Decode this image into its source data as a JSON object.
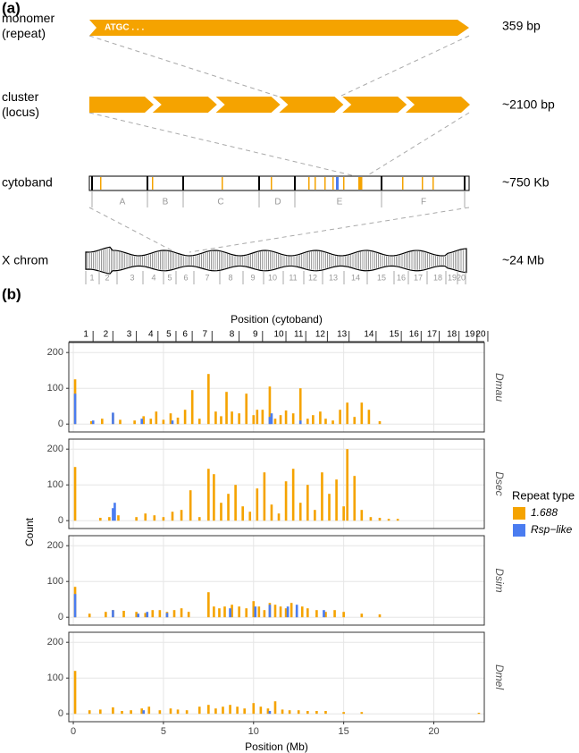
{
  "panel_a": {
    "label": "(a)",
    "rows": [
      {
        "name": [
          "monomer",
          "(repeat)"
        ],
        "size": "359 bp"
      },
      {
        "name": [
          "cluster",
          "(locus)"
        ],
        "size": "~2100 bp"
      },
      {
        "name": [
          "cytoband"
        ],
        "size": "~750 Kb"
      },
      {
        "name": [
          "X chrom"
        ],
        "size": "~24 Mb"
      }
    ],
    "monomer_text": "ATGC . . .",
    "band_letters": [
      "A",
      "B",
      "C",
      "D",
      "E",
      "F"
    ],
    "chrom_bands": [
      1,
      2,
      3,
      4,
      5,
      6,
      7,
      8,
      9,
      10,
      11,
      12,
      13,
      14,
      15,
      16,
      17,
      18,
      19,
      20
    ]
  },
  "chart_data": {
    "type": "bar",
    "label": "(b)",
    "xlabel": "Position (Mb)",
    "ylabel": "Count",
    "top_xlabel": "Position (cytoband)",
    "legend_title": "Repeat type",
    "grid": true,
    "xlim": [
      -0.25,
      22.8
    ],
    "xticks": [
      0,
      5,
      10,
      15,
      20
    ],
    "ylim": [
      -22,
      228
    ],
    "yticks": [
      0,
      100,
      200
    ],
    "top_xticks": [
      {
        "value": 0.7,
        "label": "1"
      },
      {
        "value": 1.8,
        "label": "2"
      },
      {
        "value": 3.1,
        "label": "3"
      },
      {
        "value": 4.3,
        "label": "4"
      },
      {
        "value": 5.3,
        "label": "5"
      },
      {
        "value": 6.2,
        "label": "6"
      },
      {
        "value": 7.3,
        "label": "7"
      },
      {
        "value": 8.8,
        "label": "8"
      },
      {
        "value": 10.1,
        "label": "9"
      },
      {
        "value": 11.4,
        "label": "10"
      },
      {
        "value": 12.5,
        "label": "11"
      },
      {
        "value": 13.7,
        "label": "12"
      },
      {
        "value": 14.9,
        "label": "13"
      },
      {
        "value": 16.4,
        "label": "14"
      },
      {
        "value": 17.8,
        "label": "15"
      },
      {
        "value": 18.9,
        "label": "16"
      },
      {
        "value": 19.9,
        "label": "17"
      },
      {
        "value": 21.0,
        "label": "18"
      },
      {
        "value": 22.0,
        "label": "19"
      },
      {
        "value": 22.6,
        "label": "20"
      }
    ],
    "series": [
      {
        "name": "1.688",
        "color": "#f5a300"
      },
      {
        "name": "Rsp−like",
        "color": "#4a7cf0"
      }
    ],
    "facets": [
      {
        "label": "Dmau",
        "series": [
          {
            "x": [
              0.1,
              1.0,
              1.6,
              2.2,
              2.6,
              3.4,
              3.9,
              4.3,
              4.6,
              5.0,
              5.4,
              5.8,
              6.2,
              6.6,
              7.0,
              7.5,
              7.9,
              8.2,
              8.5,
              8.8,
              9.2,
              9.6,
              10.0,
              10.2,
              10.5,
              10.9,
              11.2,
              11.5,
              11.8,
              12.2,
              12.6,
              13.0,
              13.3,
              13.7,
              14.0,
              14.4,
              14.8,
              15.2,
              15.6,
              16.0,
              16.4,
              17.0
            ],
            "values": [
              125,
              8,
              15,
              30,
              12,
              10,
              22,
              15,
              35,
              12,
              30,
              18,
              40,
              95,
              15,
              140,
              35,
              22,
              90,
              35,
              30,
              85,
              25,
              40,
              40,
              105,
              15,
              25,
              38,
              30,
              100,
              15,
              25,
              35,
              15,
              10,
              40,
              60,
              20,
              60,
              40,
              8
            ]
          },
          {
            "x": [
              0.1,
              1.1,
              2.2,
              3.8,
              5.5,
              10.9,
              11.0,
              12.6
            ],
            "values": [
              85,
              10,
              32,
              15,
              10,
              20,
              30,
              10
            ]
          }
        ]
      },
      {
        "label": "Dsec",
        "series": [
          {
            "x": [
              0.1,
              1.5,
              2.0,
              2.5,
              3.5,
              4.0,
              4.5,
              5.0,
              5.5,
              6.0,
              6.5,
              7.0,
              7.5,
              7.8,
              8.2,
              8.6,
              9.0,
              9.4,
              9.8,
              10.2,
              10.6,
              11.0,
              11.4,
              11.8,
              12.2,
              12.6,
              13.0,
              13.4,
              13.8,
              14.2,
              14.6,
              15.0,
              15.2,
              15.6,
              16.0,
              16.5,
              17.0,
              17.5,
              18.0
            ],
            "values": [
              150,
              8,
              10,
              15,
              10,
              20,
              15,
              10,
              25,
              30,
              85,
              10,
              145,
              130,
              50,
              75,
              100,
              40,
              25,
              90,
              135,
              45,
              20,
              110,
              145,
              50,
              100,
              30,
              135,
              75,
              115,
              40,
              200,
              125,
              30,
              10,
              8,
              5,
              5
            ]
          },
          {
            "x": [
              2.2,
              2.3
            ],
            "values": [
              35,
              50
            ]
          }
        ]
      },
      {
        "label": "Dsim",
        "series": [
          {
            "x": [
              0.1,
              0.9,
              1.8,
              2.2,
              2.8,
              3.5,
              4.0,
              4.4,
              4.8,
              5.2,
              5.6,
              6.0,
              6.4,
              7.5,
              7.8,
              8.1,
              8.4,
              8.8,
              9.2,
              9.6,
              10.0,
              10.3,
              10.6,
              10.9,
              11.2,
              11.5,
              11.8,
              12.1,
              12.4,
              12.7,
              13.0,
              13.5,
              14.0,
              14.5,
              15.0,
              16.0,
              17.0
            ],
            "values": [
              85,
              10,
              15,
              20,
              18,
              15,
              12,
              20,
              20,
              15,
              20,
              25,
              15,
              70,
              30,
              25,
              30,
              35,
              30,
              25,
              45,
              30,
              20,
              40,
              35,
              30,
              25,
              40,
              20,
              30,
              25,
              20,
              15,
              20,
              15,
              10,
              8
            ]
          },
          {
            "x": [
              0.1,
              2.2,
              3.6,
              4.1,
              5.2,
              8.7,
              10.1,
              10.9,
              11.9,
              12.4,
              13.9
            ],
            "values": [
              65,
              20,
              10,
              15,
              12,
              25,
              30,
              35,
              30,
              35,
              20
            ]
          }
        ]
      },
      {
        "label": "Dmel",
        "series": [
          {
            "x": [
              0.1,
              0.9,
              1.5,
              2.2,
              2.7,
              3.2,
              3.8,
              4.2,
              4.8,
              5.4,
              5.8,
              6.3,
              7.0,
              7.5,
              7.9,
              8.3,
              8.7,
              9.1,
              9.5,
              10.0,
              10.4,
              10.8,
              11.2,
              11.6,
              12.0,
              12.5,
              13.0,
              13.5,
              14.0,
              15.0,
              16.0,
              22.5
            ],
            "values": [
              120,
              10,
              12,
              18,
              8,
              10,
              15,
              20,
              10,
              15,
              12,
              10,
              20,
              25,
              15,
              20,
              25,
              20,
              15,
              30,
              20,
              15,
              35,
              12,
              10,
              10,
              8,
              8,
              8,
              5,
              5,
              3
            ]
          },
          {
            "x": [
              3.9,
              10.9
            ],
            "values": [
              10,
              8
            ]
          }
        ]
      }
    ]
  }
}
